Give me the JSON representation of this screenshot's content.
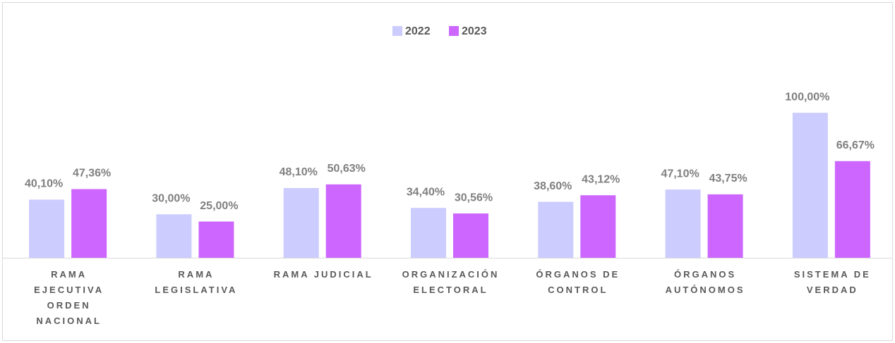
{
  "chart_data": {
    "type": "bar",
    "categories": [
      "RAMA EJECUTIVA ORDEN NACIONAL",
      "RAMA LEGISLATIVA",
      "RAMA JUDICIAL",
      "ORGANIZACIÓN ELECTORAL",
      "ÓRGANOS DE CONTROL",
      "ÓRGANOS AUTÓNOMOS",
      "SISTEMA DE VERDAD"
    ],
    "series": [
      {
        "name": "2022",
        "color": "#ccccff",
        "values": [
          40.1,
          30,
          48.1,
          34.4,
          38.6,
          47.1,
          100
        ],
        "value_labels": [
          "40,10%",
          "30,00%",
          "48,10%",
          "34,40%",
          "38,60%",
          "47,10%",
          "100,00%"
        ]
      },
      {
        "name": "2023",
        "color": "#cc66ff",
        "values": [
          47.36,
          25,
          50.63,
          30.56,
          43.12,
          43.75,
          66.67
        ],
        "value_labels": [
          "47,36%",
          "25,00%",
          "50,63%",
          "30,56%",
          "43,12%",
          "43,75%",
          "66,67%"
        ]
      }
    ],
    "ylim": [
      0,
      120
    ],
    "legend": "top"
  }
}
